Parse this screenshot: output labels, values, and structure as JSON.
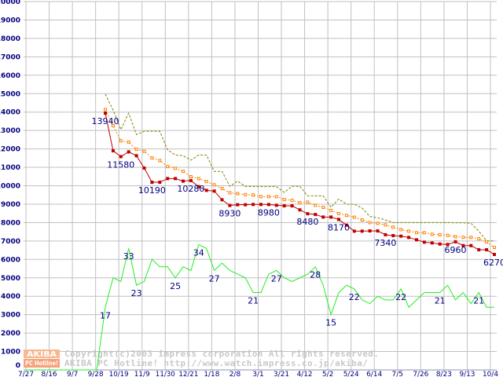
{
  "chart_data": {
    "type": "line",
    "title": "",
    "xlabel": "",
    "ylabel": "",
    "ylim": [
      0,
      20000
    ],
    "y_ticks": [
      0,
      1000,
      2000,
      3000,
      4000,
      5000,
      6000,
      7000,
      8000,
      9000,
      10000,
      11000,
      12000,
      13000,
      14000,
      15000,
      16000,
      17000,
      18000,
      19000,
      20000
    ],
    "x_tick_labels": [
      "7/27",
      "8/16",
      "9/7",
      "9/28",
      "10/19",
      "11/9",
      "11/30",
      "12/21",
      "1/18",
      "2/8",
      "3/1",
      "3/21",
      "4/12",
      "5/2",
      "5/24",
      "6/14",
      "7/5",
      "7/26",
      "8/23",
      "9/13",
      "10/4"
    ],
    "grid": true,
    "count_scale": 200,
    "series": [
      {
        "name": "max-price",
        "color": "#808000",
        "style": "dashed",
        "values": [
          14970,
          14110,
          13050,
          13940,
          12780,
          12960,
          12960,
          12960,
          11950,
          11670,
          11630,
          11390,
          11670,
          11670,
          10780,
          10780,
          9970,
          10250,
          9970,
          9950,
          9950,
          9950,
          9950,
          9640,
          9970,
          9970,
          9450,
          9450,
          9450,
          8830,
          9280,
          9000,
          9000,
          8790,
          8330,
          8260,
          8145,
          8000,
          8000,
          8000,
          8000,
          8000,
          8000,
          8000,
          8000,
          7990,
          7990,
          7960,
          7535,
          7010,
          7000
        ]
      },
      {
        "name": "average-price",
        "color": "#ff8000",
        "style": "dotted-square",
        "values": [
          14140,
          13260,
          12440,
          12370,
          11980,
          11870,
          11510,
          11370,
          11040,
          10950,
          10780,
          10490,
          10390,
          10230,
          10050,
          9850,
          9620,
          9570,
          9520,
          9500,
          9410,
          9410,
          9410,
          9250,
          9210,
          9080,
          9110,
          8940,
          8830,
          8660,
          8490,
          8390,
          8290,
          8145,
          8000,
          7960,
          7875,
          7750,
          7620,
          7535,
          7450,
          7450,
          7365,
          7335,
          7305,
          7235,
          7195,
          7195,
          7120,
          6950,
          6650
        ]
      },
      {
        "name": "min-price",
        "color": "#c00000",
        "style": "solid-square",
        "values": [
          13940,
          11900,
          11580,
          11840,
          11630,
          10960,
          10190,
          10190,
          10390,
          10390,
          10250,
          10280,
          9950,
          9750,
          9710,
          9240,
          8930,
          8970,
          8970,
          8985,
          8985,
          8980,
          8940,
          8910,
          8910,
          8690,
          8480,
          8440,
          8300,
          8300,
          8170,
          7860,
          7535,
          7535,
          7548,
          7548,
          7340,
          7292,
          7264,
          7193,
          7065,
          6937,
          6895,
          6836,
          6810,
          6960,
          6750,
          6750,
          6525,
          6525,
          6270
        ],
        "labels": [
          {
            "index": 0,
            "text": "13940"
          },
          {
            "index": 2,
            "text": "11580"
          },
          {
            "index": 6,
            "text": "10190"
          },
          {
            "index": 11,
            "text": "10280"
          },
          {
            "index": 16,
            "text": "8930"
          },
          {
            "index": 21,
            "text": "8980"
          },
          {
            "index": 26,
            "text": "8480"
          },
          {
            "index": 30,
            "text": "8170"
          },
          {
            "index": 36,
            "text": "7340"
          },
          {
            "index": 45,
            "text": "6960"
          },
          {
            "index": 50,
            "text": "6270"
          }
        ]
      },
      {
        "name": "shop-count",
        "color": "#22ee22",
        "style": "solid",
        "values": [
          17,
          25,
          24,
          33,
          23,
          24,
          30,
          28,
          28,
          25,
          28,
          27,
          34,
          33,
          27,
          29,
          27,
          26,
          25,
          21,
          21,
          26,
          27,
          25,
          24,
          25,
          26,
          28,
          23,
          15,
          21,
          23,
          22,
          19,
          18,
          20,
          19,
          19,
          22,
          17,
          19,
          21,
          21,
          21,
          23,
          19,
          21,
          18,
          21,
          17,
          17
        ],
        "labels": [
          {
            "index": 0,
            "text": "17"
          },
          {
            "index": 3,
            "text": "33"
          },
          {
            "index": 4,
            "text": "23"
          },
          {
            "index": 9,
            "text": "25"
          },
          {
            "index": 12,
            "text": "34"
          },
          {
            "index": 14,
            "text": "27"
          },
          {
            "index": 19,
            "text": "21"
          },
          {
            "index": 22,
            "text": "27"
          },
          {
            "index": 27,
            "text": "28"
          },
          {
            "index": 29,
            "text": "15"
          },
          {
            "index": 32,
            "text": "22"
          },
          {
            "index": 38,
            "text": "22"
          },
          {
            "index": 43,
            "text": "21"
          },
          {
            "index": 48,
            "text": "21"
          }
        ]
      }
    ]
  },
  "watermark": {
    "logo_top": "AKIBA",
    "logo_bottom": "PC Hotline!",
    "line1": "Copyright(c)2003 impress corporation All rights reserved.",
    "line2": "AKIBA PC Hotline!  http://www.watch.impress.co.jp/akiba/"
  }
}
